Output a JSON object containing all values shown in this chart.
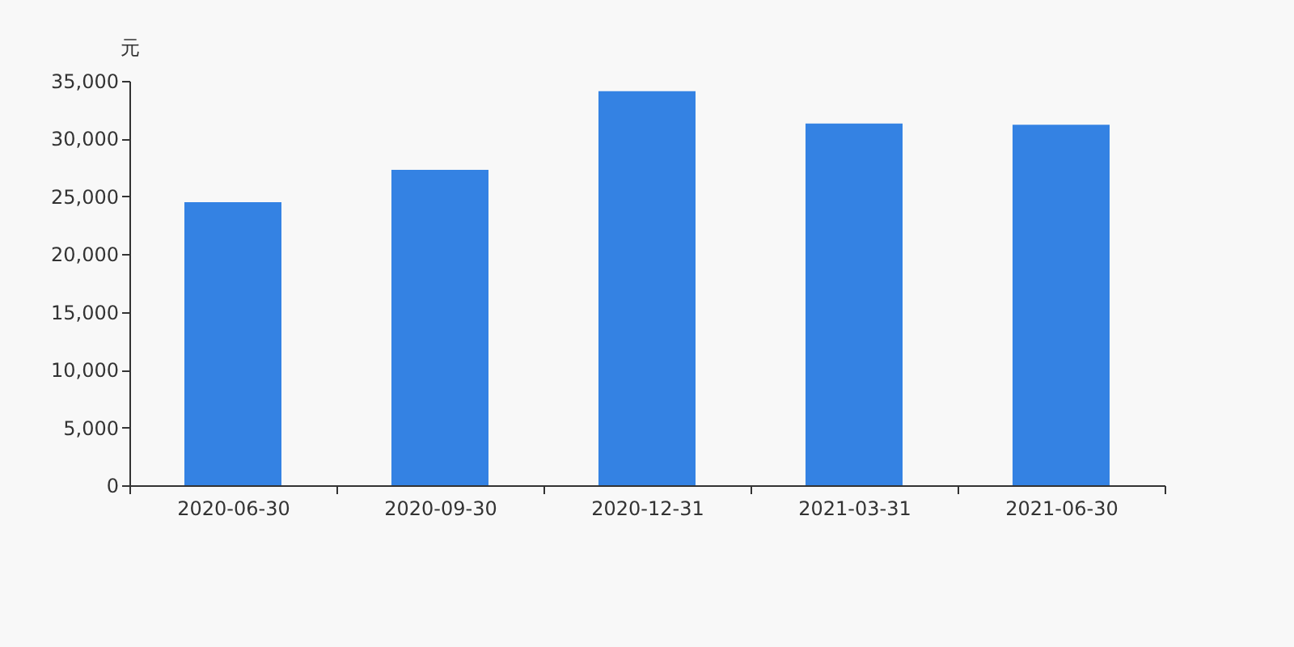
{
  "chart_data": {
    "type": "bar",
    "ylabel": "元",
    "categories": [
      "2020-06-30",
      "2020-09-30",
      "2020-12-31",
      "2021-03-31",
      "2021-06-30"
    ],
    "values": [
      24500,
      27300,
      34100,
      31300,
      31200
    ],
    "color": "#3482e3",
    "ylim": [
      0,
      35000
    ],
    "yticks": [
      {
        "value": 0,
        "label": "0"
      },
      {
        "value": 5000,
        "label": "5,000"
      },
      {
        "value": 10000,
        "label": "10,000"
      },
      {
        "value": 15000,
        "label": "15,000"
      },
      {
        "value": 20000,
        "label": "20,000"
      },
      {
        "value": 25000,
        "label": "25,000"
      },
      {
        "value": 30000,
        "label": "30,000"
      },
      {
        "value": 35000,
        "label": "35,000"
      }
    ],
    "grid": false
  }
}
